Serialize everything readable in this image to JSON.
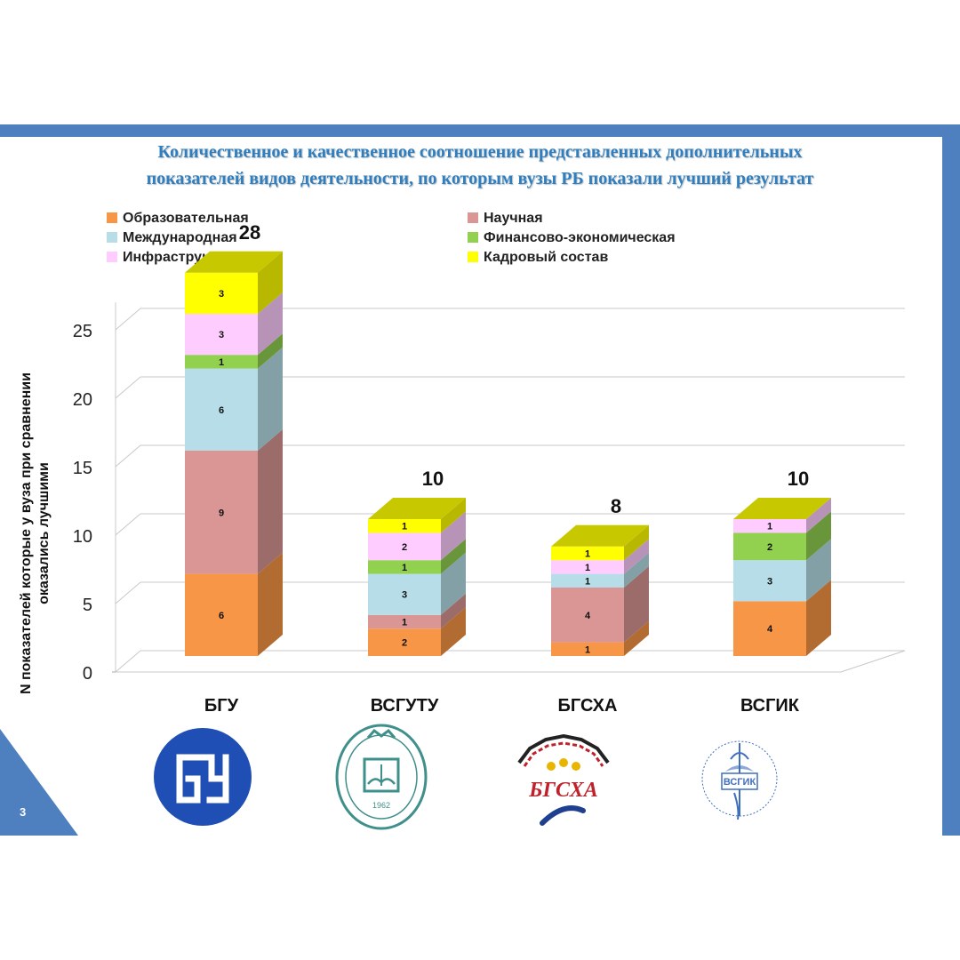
{
  "title": {
    "line1": "Количественное и качественное соотношение представленных дополнительных",
    "line2": "показателей видов деятельности, по которым вузы РБ  показали лучший результат"
  },
  "slide_number": "3",
  "colors": {
    "band": "#4e7fbf",
    "title": "#2f7fc0"
  },
  "chart_data": {
    "type": "bar",
    "stacked": true,
    "three_d": true,
    "categories": [
      "БГУ",
      "ВСГУТУ",
      "БГСХА",
      "ВСГИК"
    ],
    "series": [
      {
        "name": "Образовательная",
        "color": "#f79646",
        "values": [
          6,
          2,
          1,
          4
        ]
      },
      {
        "name": "Научная",
        "color": "#d99694",
        "values": [
          9,
          1,
          4,
          0
        ]
      },
      {
        "name": "Международная",
        "color": "#b7dee8",
        "values": [
          6,
          3,
          1,
          3
        ]
      },
      {
        "name": "Финансово-экономическая",
        "color": "#92d050",
        "values": [
          1,
          1,
          0,
          2
        ]
      },
      {
        "name": "Инфраструктура",
        "color": "#ffccff",
        "values": [
          3,
          2,
          1,
          1
        ]
      },
      {
        "name": "Кадровый состав",
        "color": "#ffff00",
        "values": [
          3,
          1,
          1,
          0
        ]
      }
    ],
    "totals": [
      28,
      10,
      8,
      10
    ],
    "ylabel": "N показателей которые у вуза при сравнении оказались лучшими",
    "xlabel": "",
    "yticks": [
      0,
      5,
      10,
      15,
      20,
      25
    ],
    "ylim": [
      0,
      27
    ],
    "grid": true,
    "legend_position": "top"
  },
  "logos": [
    {
      "name": "bgu-logo",
      "text": "БГУ"
    },
    {
      "name": "vsgutu-logo",
      "text": "1962"
    },
    {
      "name": "bgsha-logo",
      "text": "БГСХА"
    },
    {
      "name": "vsgik-logo",
      "text": "ВСГИК",
      "ring_text": "Восточно-Сибирский государственный институт культуры"
    }
  ]
}
